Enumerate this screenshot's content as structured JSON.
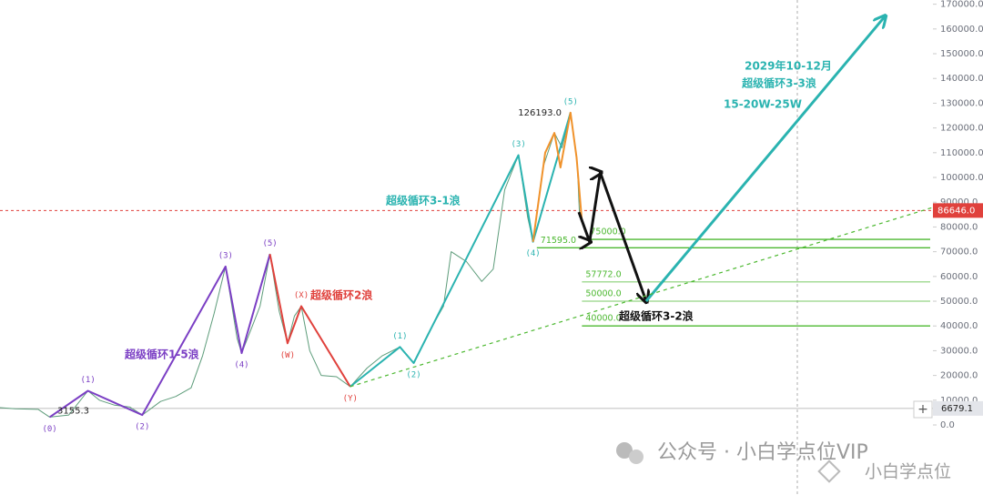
{
  "chart_data": {
    "type": "line",
    "xlim": [
      2018.3,
      2030.5
    ],
    "ylim": [
      -28300,
      171700
    ],
    "yticks": [
      {
        "value": 0,
        "label": "0.0"
      },
      {
        "value": 10000,
        "label": "10000.0"
      },
      {
        "value": 20000,
        "label": "20000.0"
      },
      {
        "value": 30000,
        "label": "30000.0"
      },
      {
        "value": 40000,
        "label": "40000.0"
      },
      {
        "value": 50000,
        "label": "50000.0"
      },
      {
        "value": 60000,
        "label": "60000.0"
      },
      {
        "value": 70000,
        "label": "70000.0"
      },
      {
        "value": 80000,
        "label": "80000.0"
      },
      {
        "value": 90000,
        "label": "90000.0"
      },
      {
        "value": 100000,
        "label": "100000.0"
      },
      {
        "value": 110000,
        "label": "110000.0"
      },
      {
        "value": 120000,
        "label": "120000.0"
      },
      {
        "value": 130000,
        "label": "130000.0"
      },
      {
        "value": 140000,
        "label": "140000.0"
      },
      {
        "value": 150000,
        "label": "150000.0"
      },
      {
        "value": 160000,
        "label": "160000.0"
      },
      {
        "value": 170000,
        "label": "170000.0"
      }
    ],
    "series": [
      {
        "color": "#5d9c7a",
        "width": 1,
        "x": [
          2018.3,
          2018.5,
          2018.8,
          2018.95,
          2019.2,
          2019.45,
          2019.6,
          2019.8,
          2020.0,
          2020.16,
          2020.4,
          2020.6,
          2020.8,
          2020.95,
          2021.1,
          2021.25,
          2021.4,
          2021.46,
          2021.6,
          2021.7,
          2021.83,
          2021.95,
          2022.06,
          2022.15,
          2022.24,
          2022.35,
          2022.5,
          2022.7,
          2022.88,
          2023.1,
          2023.3,
          2023.53,
          2023.71,
          2023.9,
          2024.1,
          2024.2,
          2024.4,
          2024.6,
          2024.75,
          2024.9,
          2025.08,
          2025.2,
          2025.27,
          2025.4,
          2025.55,
          2025.65,
          2025.76,
          2025.85,
          2025.88
        ],
        "values": [
          7000,
          6500,
          6300,
          3155,
          4000,
          13800,
          10000,
          8000,
          7200,
          4000,
          9500,
          11500,
          15000,
          28000,
          45000,
          64000,
          35000,
          29000,
          40000,
          48000,
          69000,
          46000,
          33000,
          44000,
          48000,
          30000,
          20000,
          19500,
          15500,
          23000,
          28000,
          31500,
          25000,
          37000,
          48000,
          70000,
          66000,
          58000,
          63000,
          95000,
          109000,
          84000,
          74000,
          104000,
          118000,
          112000,
          126193,
          105000,
          84000
        ]
      },
      {
        "color": "#7b3fc4",
        "width": 2,
        "x": [
          2018.95,
          2019.45,
          2020.16,
          2021.25,
          2021.46,
          2021.83
        ],
        "values": [
          3155,
          13800,
          4000,
          64000,
          29000,
          69000
        ],
        "labels": [
          "(0)",
          "(1)",
          "(2)",
          "(3)",
          "(4)",
          "(5)"
        ]
      },
      {
        "color": "#e0413c",
        "width": 2,
        "x": [
          2021.83,
          2022.06,
          2022.24,
          2022.88
        ],
        "values": [
          69000,
          33000,
          48000,
          15500
        ],
        "labels": [
          null,
          "(W)",
          "(X)",
          "(Y)"
        ]
      },
      {
        "color": "#2ab3b0",
        "width": 2,
        "x": [
          2022.88,
          2023.53,
          2023.71,
          2025.08,
          2025.27,
          2025.76
        ],
        "values": [
          15500,
          31500,
          25000,
          109000,
          74000,
          126193
        ],
        "labels": [
          null,
          "(1)",
          "(2)",
          "(3)",
          "(4)",
          "(5)"
        ]
      },
      {
        "color": "#f0922b",
        "width": 2,
        "x": [
          2025.27,
          2025.43,
          2025.55,
          2025.63,
          2025.76,
          2025.84,
          2025.91
        ],
        "values": [
          74000,
          110000,
          118000,
          104000,
          126193,
          108000,
          82000
        ]
      },
      {
        "color": "#111111",
        "width": 3,
        "arrow": true,
        "x": [
          2025.87,
          2026.01,
          2026.15,
          2026.75
        ],
        "values": [
          86000,
          74000,
          102000,
          50000
        ]
      },
      {
        "color": "#2ab3b0",
        "width": 3,
        "arrow": true,
        "x": [
          2026.75,
          2029.87
        ],
        "values": [
          50000,
          165000
        ]
      },
      {
        "color": "#4cb830",
        "width": 1.2,
        "style": "dashed",
        "x": [
          2022.88,
          2030.5
        ],
        "values": [
          15500,
          87900
        ]
      }
    ],
    "levels": [
      {
        "value": 75000,
        "label": "75000.0",
        "start": 2025.97
      },
      {
        "value": 71595,
        "label": "71595.0",
        "start": 2025.32
      },
      {
        "value": 57772,
        "label": "57772.0",
        "start": 2025.91
      },
      {
        "value": 50000,
        "label": "50000.0",
        "start": 2025.91
      },
      {
        "value": 40000,
        "label": "40000.0",
        "start": 2025.91
      }
    ],
    "level_color": "#4cb830",
    "price_labels": [
      {
        "value": 3155.3,
        "label": "3155.3"
      },
      {
        "value": 126193,
        "label": "126193.0"
      }
    ],
    "last_price": {
      "value": 86646,
      "label": "86646.0",
      "color": "#e0413c"
    },
    "cursor_price": {
      "value": 6679.1,
      "label": "6679.1"
    },
    "annotations": [
      {
        "text": "超级循环1-5浪",
        "color": "#7b3fc4"
      },
      {
        "text": "超级循环2浪",
        "color": "#e0413c"
      },
      {
        "text": "超级循环3-1浪",
        "color": "#2ab3b0"
      },
      {
        "text": "超级循环3-2浪",
        "color": "#111111"
      },
      {
        "text": "2029年10-12月",
        "color": "#2ab3b0"
      },
      {
        "text": "超级循环3-3浪",
        "color": "#2ab3b0"
      },
      {
        "text": "15-20W-25W",
        "color": "#2ab3b0"
      }
    ]
  },
  "watermark": {
    "main": "公众号 · 小白学点位VIP",
    "corner": "小白学点位"
  }
}
